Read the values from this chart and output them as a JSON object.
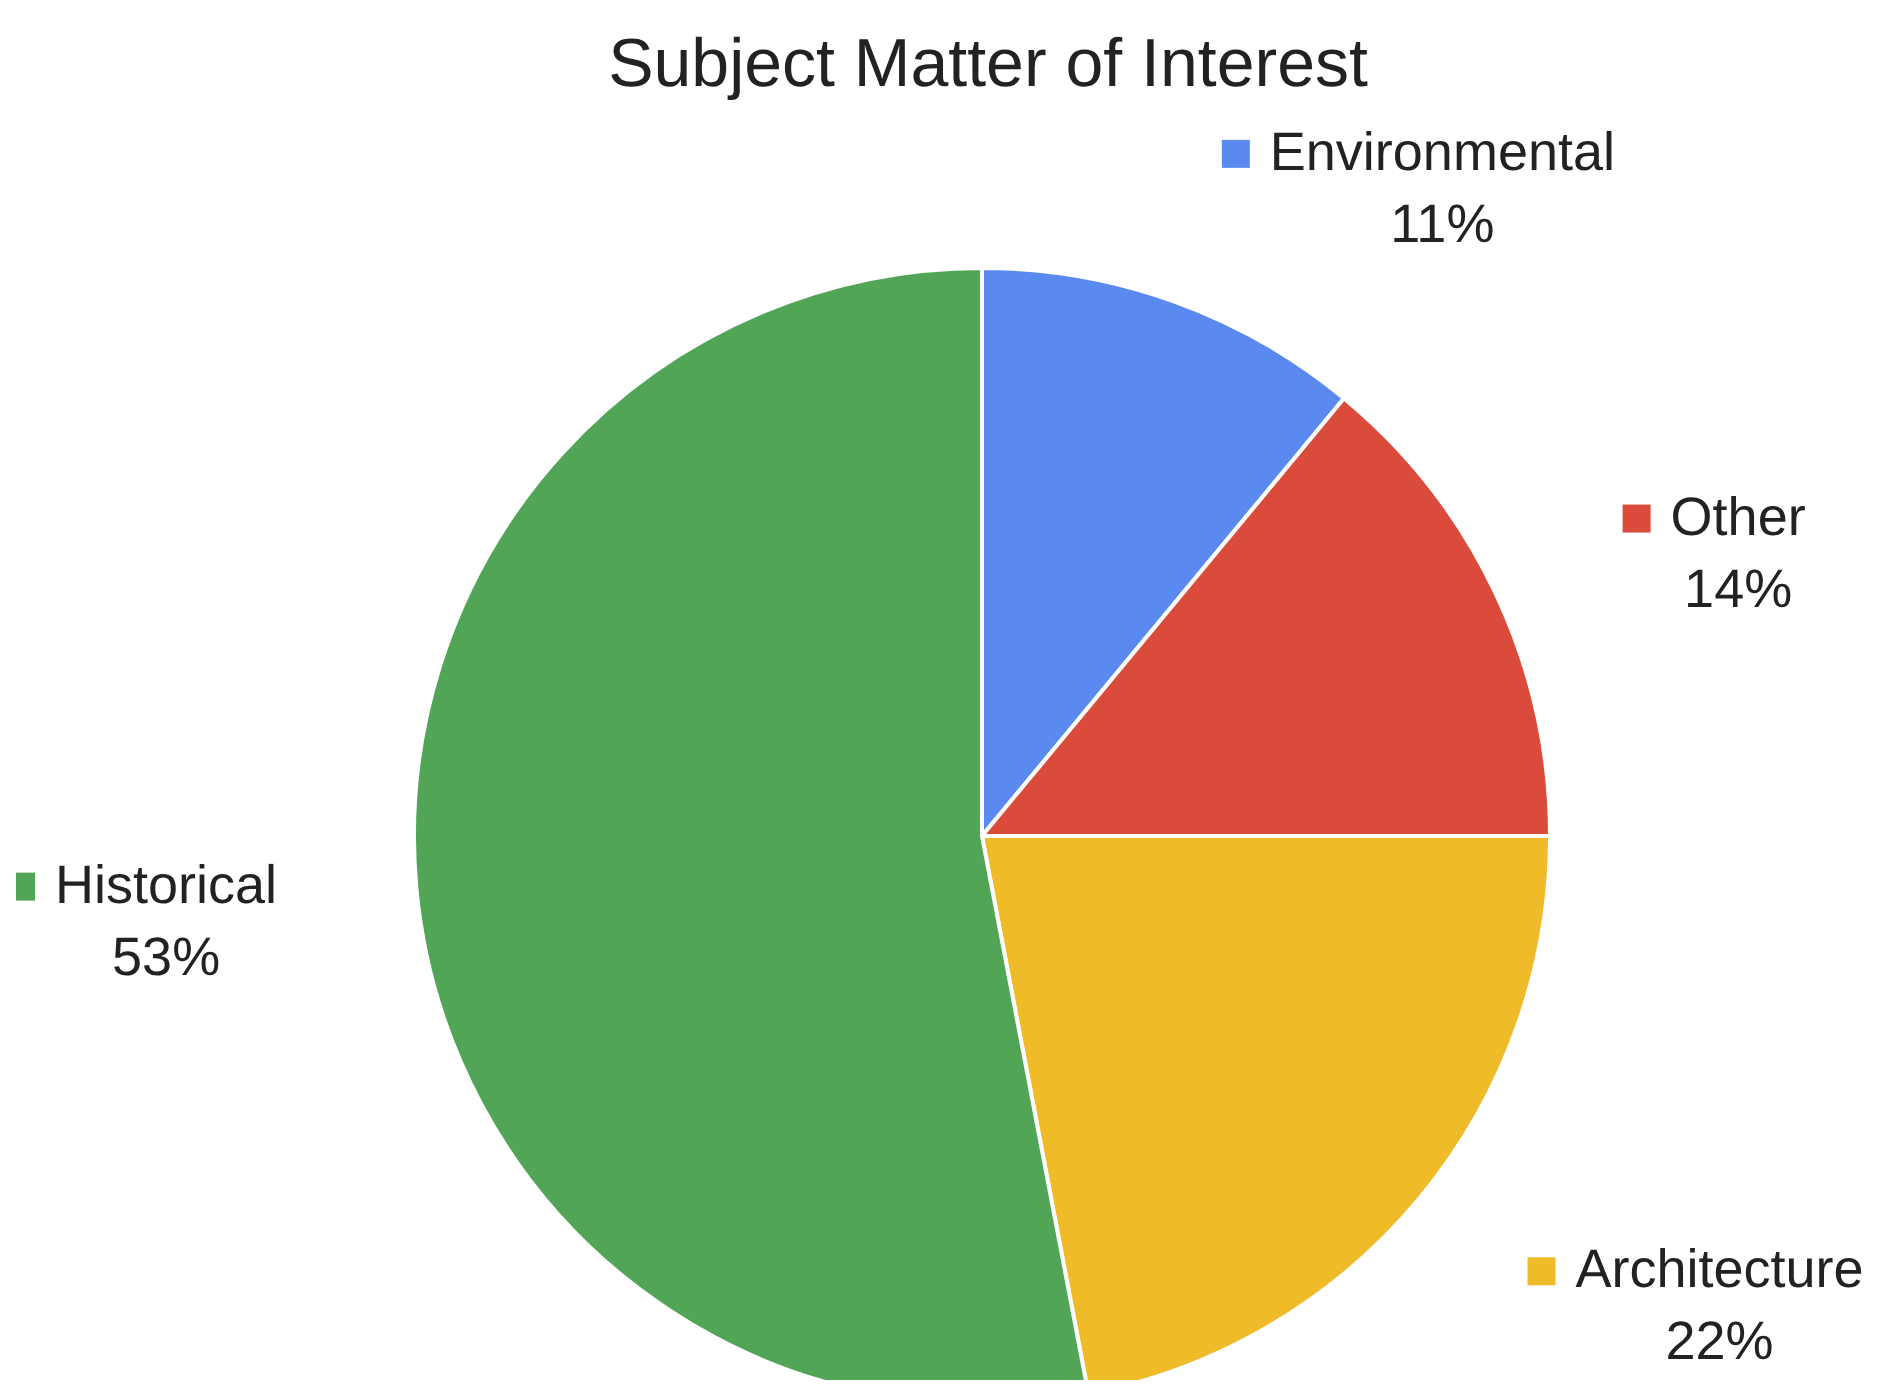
{
  "chart_data": {
    "type": "pie",
    "title": "Subject Matter of Interest",
    "categories": [
      "Environmental",
      "Other",
      "Architecture",
      "Historical"
    ],
    "values": [
      11,
      14,
      22,
      53
    ],
    "value_labels": [
      "11%",
      "14%",
      "22%",
      "53%"
    ],
    "colors": [
      "#5a8af0",
      "#db4b3c",
      "#f0bb28",
      "#52a557"
    ],
    "legend": "right"
  }
}
